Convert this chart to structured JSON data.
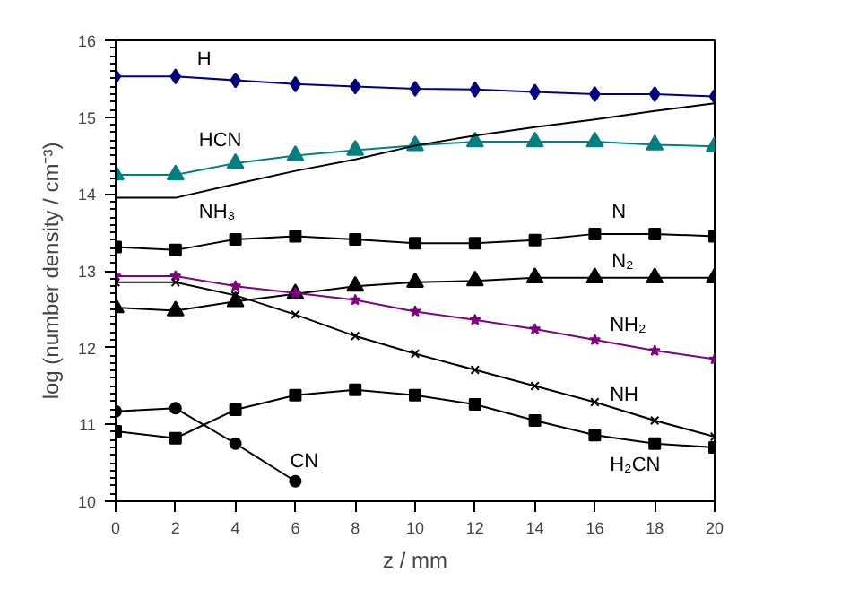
{
  "chart_data": {
    "type": "line",
    "xlabel": "z / mm",
    "ylabel": "log (number density / cm⁻³)",
    "x": [
      0,
      2,
      4,
      6,
      8,
      10,
      12,
      14,
      16,
      18,
      20
    ],
    "xlim": [
      0,
      20
    ],
    "xticks": [
      0,
      2,
      4,
      6,
      8,
      10,
      12,
      14,
      16,
      18,
      20
    ],
    "ylim": [
      10,
      16
    ],
    "yticks": [
      10,
      11,
      12,
      13,
      14,
      15,
      16
    ],
    "grid": false,
    "series": [
      {
        "name": "H",
        "color": "#000080",
        "marker": "diamond",
        "values": [
          15.53,
          15.53,
          15.48,
          15.43,
          15.4,
          15.37,
          15.36,
          15.33,
          15.3,
          15.3,
          15.27
        ]
      },
      {
        "name": "HCN",
        "color": "#008080",
        "marker": "triangle",
        "values": [
          14.25,
          14.25,
          14.4,
          14.5,
          14.57,
          14.63,
          14.68,
          14.68,
          14.68,
          14.64,
          14.62
        ]
      },
      {
        "name": "NH₃",
        "color": "#000000",
        "marker": "none",
        "values": [
          13.95,
          13.95,
          14.13,
          14.3,
          14.45,
          14.63,
          14.76,
          14.87,
          14.97,
          15.08,
          15.18
        ]
      },
      {
        "name": "N",
        "color": "#000000",
        "marker": "square",
        "values": [
          13.31,
          13.27,
          13.41,
          13.45,
          13.41,
          13.36,
          13.36,
          13.4,
          13.48,
          13.48,
          13.45
        ]
      },
      {
        "name": "N₂",
        "color": "#000000",
        "marker": "triangle",
        "values": [
          12.52,
          12.48,
          12.6,
          12.7,
          12.8,
          12.85,
          12.87,
          12.91,
          12.91,
          12.91,
          12.91
        ]
      },
      {
        "name": "NH₂",
        "color": "#800080",
        "marker": "star",
        "values": [
          12.93,
          12.93,
          12.8,
          12.71,
          12.62,
          12.47,
          12.36,
          12.24,
          12.1,
          11.96,
          11.85
        ]
      },
      {
        "name": "NH",
        "color": "#000000",
        "marker": "cross",
        "values": [
          12.85,
          12.85,
          12.68,
          12.43,
          12.15,
          11.92,
          11.71,
          11.5,
          11.29,
          11.05,
          10.84
        ]
      },
      {
        "name": "H₂CN",
        "color": "#000000",
        "marker": "square",
        "values": [
          10.91,
          10.82,
          11.19,
          11.38,
          11.45,
          11.38,
          11.26,
          11.05,
          10.86,
          10.75,
          10.7
        ]
      },
      {
        "name": "CN",
        "color": "#000000",
        "marker": "circle",
        "x": [
          0,
          2,
          4,
          6
        ],
        "values": [
          11.17,
          11.21,
          10.75,
          10.26
        ]
      }
    ]
  }
}
